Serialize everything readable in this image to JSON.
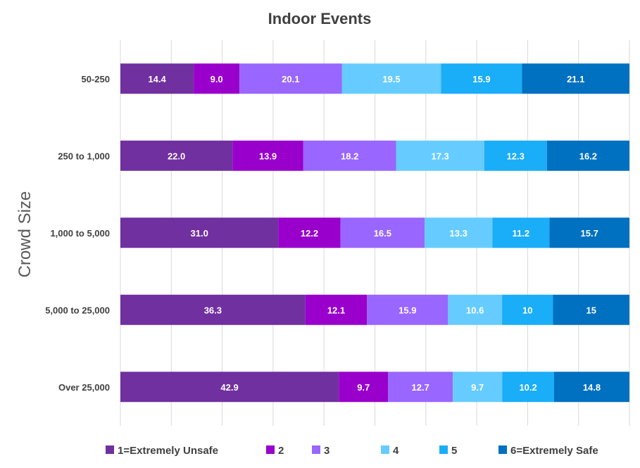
{
  "chart_data": {
    "type": "bar",
    "orientation": "horizontal",
    "stacked": true,
    "title": "Indoor Events",
    "ylabel": "Crowd Size",
    "xlabel": "",
    "categories": [
      "50-250",
      "250 to 1,000",
      "1,000 to 5,000",
      "5,000 to 25,000",
      "Over 25,000"
    ],
    "series": [
      {
        "name": "1=Extremely Unsafe",
        "color": "#7030A0",
        "values": [
          14.4,
          22.0,
          31.0,
          36.3,
          42.9
        ],
        "labels": [
          "14.4",
          "22.0",
          "31.0",
          "36.3",
          "42.9"
        ]
      },
      {
        "name": "2",
        "color": "#9900CC",
        "values": [
          9.0,
          13.9,
          12.2,
          12.1,
          9.7
        ],
        "labels": [
          "9.0",
          "13.9",
          "12.2",
          "12.1",
          "9.7"
        ]
      },
      {
        "name": "3",
        "color": "#9966FF",
        "values": [
          20.1,
          18.2,
          16.5,
          15.9,
          12.7
        ],
        "labels": [
          "20.1",
          "18.2",
          "16.5",
          "15.9",
          "12.7"
        ]
      },
      {
        "name": "4",
        "color": "#66CCFF",
        "values": [
          19.5,
          17.3,
          13.3,
          10.6,
          9.7
        ],
        "labels": [
          "19.5",
          "17.3",
          "13.3",
          "10.6",
          "9.7"
        ]
      },
      {
        "name": "5",
        "color": "#1AADF8",
        "values": [
          15.9,
          12.3,
          11.2,
          10,
          10.2
        ],
        "labels": [
          "15.9",
          "12.3",
          "11.2",
          "10",
          "10.2"
        ]
      },
      {
        "name": "6=Extremely Safe",
        "color": "#0070C0",
        "values": [
          21.1,
          16.2,
          15.7,
          15,
          14.8
        ],
        "labels": [
          "21.1",
          "16.2",
          "15.7",
          "15",
          "14.8"
        ]
      }
    ],
    "xlim": [
      0,
      100
    ],
    "grid": true,
    "legend": "bottom"
  }
}
